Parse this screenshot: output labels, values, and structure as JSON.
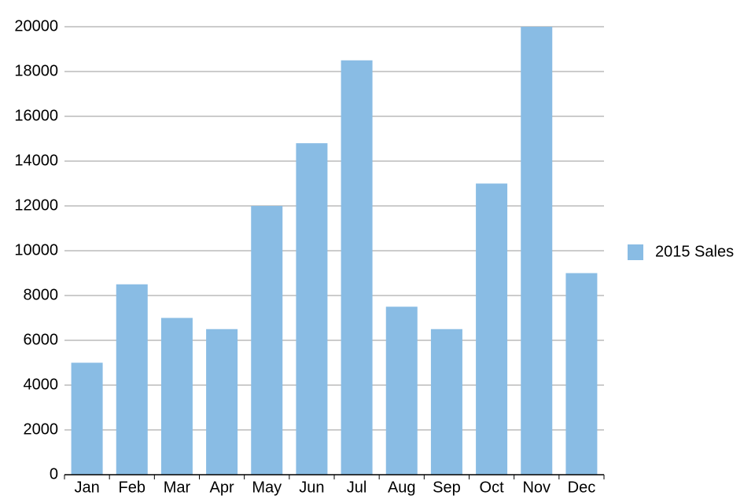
{
  "chart_data": {
    "type": "bar",
    "categories": [
      "Jan",
      "Feb",
      "Mar",
      "Apr",
      "May",
      "Jun",
      "Jul",
      "Aug",
      "Sep",
      "Oct",
      "Nov",
      "Dec"
    ],
    "series": [
      {
        "name": "2015 Sales",
        "color": "#89bce4",
        "values": [
          5000,
          8500,
          7000,
          6500,
          12000,
          14800,
          18500,
          7500,
          6500,
          13000,
          20000,
          9000
        ]
      }
    ],
    "ylim": [
      0,
      20000
    ],
    "yticks": [
      0,
      2000,
      4000,
      6000,
      8000,
      10000,
      12000,
      14000,
      16000,
      18000,
      20000
    ],
    "grid": true,
    "legend": "right"
  }
}
